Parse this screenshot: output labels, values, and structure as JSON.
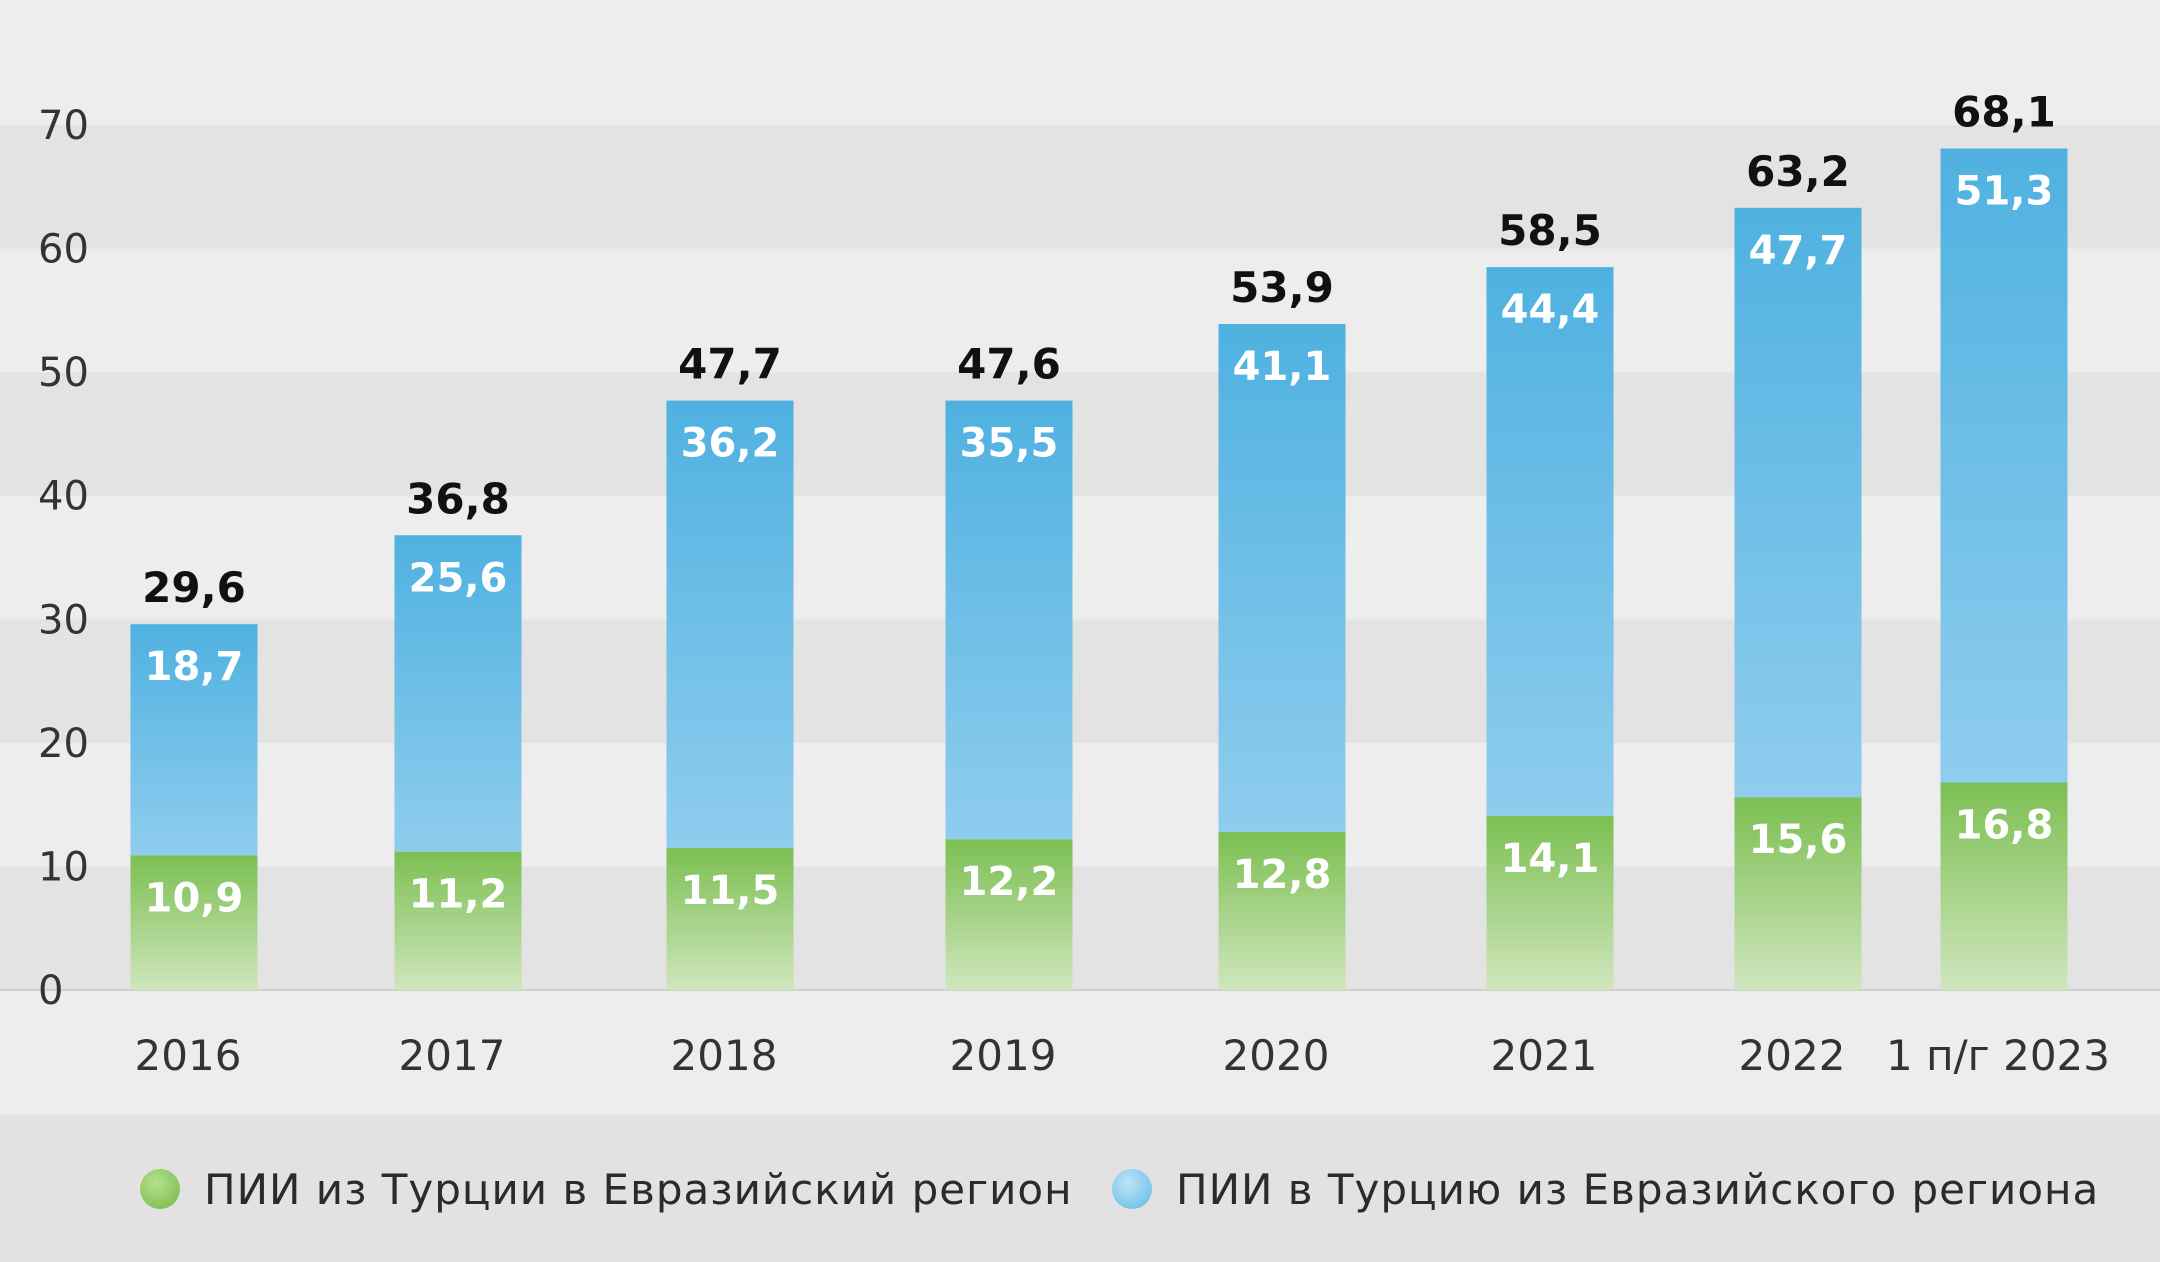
{
  "chart_data": {
    "type": "bar",
    "stacked": true,
    "title": "",
    "xlabel": "",
    "ylabel": "",
    "ylim": [
      0,
      70
    ],
    "yticks": [
      0,
      10,
      20,
      30,
      40,
      50,
      60,
      70
    ],
    "ytick_labels": [
      "0",
      "10",
      "20",
      "30",
      "40",
      "50",
      "60",
      "70"
    ],
    "grid": "alternating horizontal bands",
    "categories": [
      "2016",
      "2017",
      "2018",
      "2019",
      "2020",
      "2021",
      "2022",
      "1 п/г 2023"
    ],
    "series": [
      {
        "name": "ПИИ из Турции в Евразийский регион",
        "color": "#86c45a",
        "values": [
          10.9,
          11.2,
          11.5,
          12.2,
          12.8,
          14.1,
          15.6,
          16.8
        ],
        "value_labels": [
          "10,9",
          "11,2",
          "11,5",
          "12,2",
          "12,8",
          "14,1",
          "15,6",
          "16,8"
        ]
      },
      {
        "name": "ПИИ в Турцию из Евразийского региона",
        "color": "#5bb6e3",
        "values": [
          18.7,
          25.6,
          36.2,
          35.5,
          41.1,
          44.4,
          47.7,
          51.3
        ],
        "value_labels": [
          "18,7",
          "25,6",
          "36,2",
          "35,5",
          "41,1",
          "44,4",
          "47,7",
          "51,3"
        ]
      }
    ],
    "totals": [
      29.6,
      36.8,
      47.7,
      47.6,
      53.9,
      58.5,
      63.2,
      68.1
    ],
    "total_labels": [
      "29,6",
      "36,8",
      "47,7",
      "47,6",
      "53,9",
      "58,5",
      "63,2",
      "68,1"
    ],
    "legend": {
      "position": "bottom",
      "items": [
        "ПИИ из Турции в Евразийский регион",
        "ПИИ в Турцию из Евразийского региона"
      ]
    }
  }
}
